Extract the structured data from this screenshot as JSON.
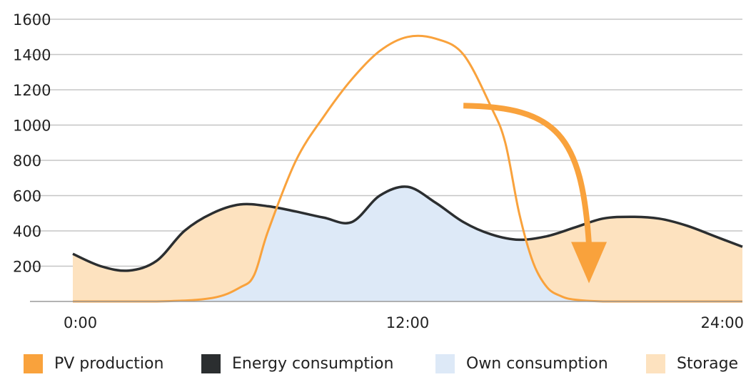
{
  "chart_data": {
    "type": "area",
    "x_ticks": [
      "0:00",
      "12:00",
      "24:00"
    ],
    "y_ticks": [
      200,
      400,
      600,
      800,
      1000,
      1200,
      1400,
      1600
    ],
    "ylim": [
      0,
      1600
    ],
    "xlim": [
      0,
      24
    ],
    "grid": "horizontal",
    "legend_placement": "bottom",
    "series": [
      {
        "name": "PV production",
        "color": "#f9a23c",
        "style": "line",
        "x": [
          0,
          3,
          5,
          6,
          6.5,
          7,
          8,
          9,
          10,
          11,
          12,
          13,
          14,
          15,
          15.5,
          16,
          16.5,
          17,
          17.5,
          18,
          19,
          20,
          24
        ],
        "y": [
          0,
          0,
          20,
          80,
          150,
          400,
          800,
          1050,
          1260,
          1420,
          1500,
          1490,
          1400,
          1100,
          900,
          500,
          220,
          80,
          30,
          10,
          0,
          0,
          0
        ]
      },
      {
        "name": "Energy consumption",
        "color": "#2b2e30",
        "style": "line",
        "x": [
          0,
          1,
          2,
          3,
          4,
          5,
          6,
          7,
          8,
          9,
          10,
          11,
          12,
          13,
          14,
          15,
          16,
          17,
          18,
          19,
          20,
          21,
          22,
          23,
          24
        ],
        "y": [
          270,
          200,
          175,
          230,
          400,
          500,
          550,
          540,
          510,
          475,
          450,
          600,
          650,
          560,
          450,
          380,
          350,
          370,
          420,
          470,
          480,
          470,
          430,
          370,
          310
        ]
      }
    ],
    "areas": [
      {
        "name": "Own consumption",
        "color": "#dde9f7"
      },
      {
        "name": "Storage",
        "color": "#fde2bf"
      }
    ],
    "annotation": {
      "type": "arrow",
      "color": "#f9a23c",
      "from": [
        14,
        1110
      ],
      "to": [
        18.5,
        200
      ]
    }
  },
  "legend": [
    {
      "label": "PV production",
      "color": "#f9a23c"
    },
    {
      "label": "Energy consumption",
      "color": "#2b2e30"
    },
    {
      "label": "Own consumption",
      "color": "#dde9f7"
    },
    {
      "label": "Storage",
      "color": "#fde2bf"
    }
  ]
}
